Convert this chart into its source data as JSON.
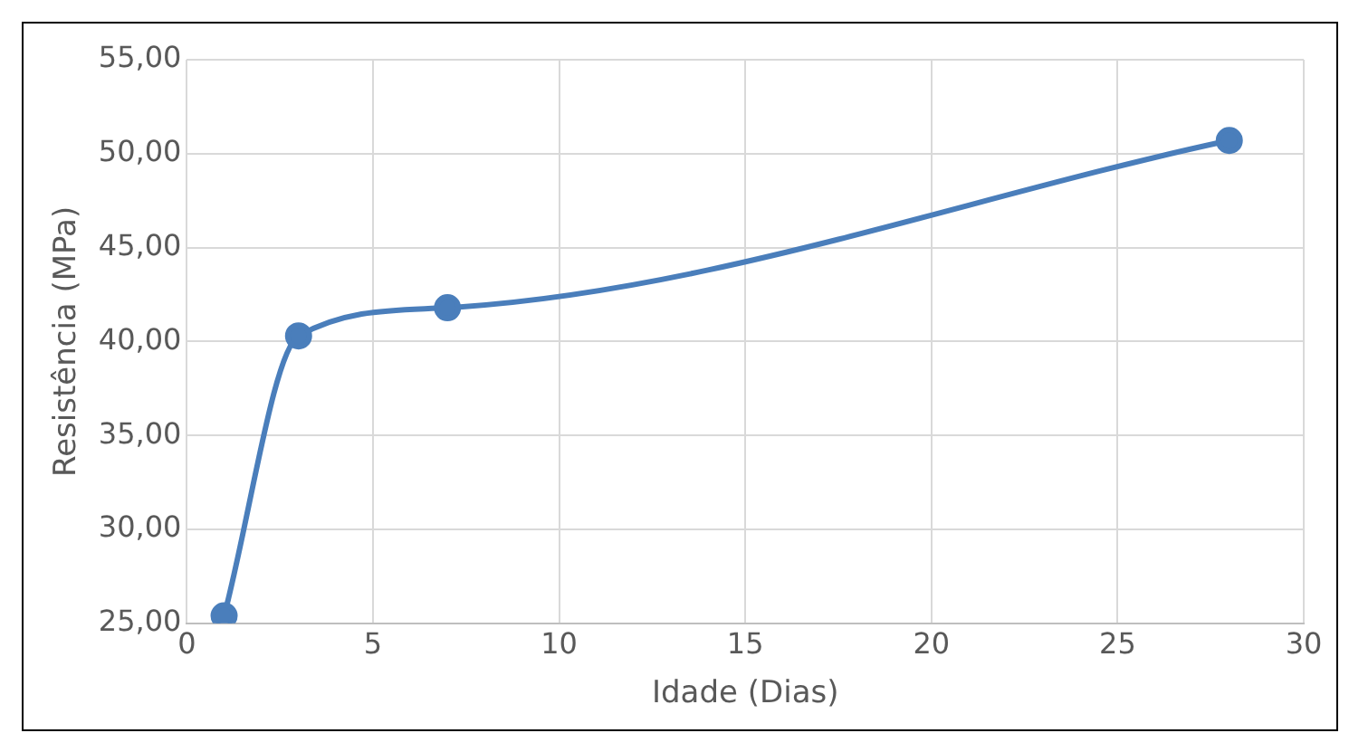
{
  "chart_data": {
    "type": "line",
    "xlabel": "Idade (Dias)",
    "ylabel": "Resistência (MPa)",
    "x": [
      1,
      3,
      7,
      28
    ],
    "series": [
      {
        "color": "#4a7ebb",
        "values": [
          25.4,
          40.3,
          41.8,
          50.7
        ]
      }
    ],
    "xlim": [
      0,
      30
    ],
    "xticks": [
      0,
      5,
      10,
      15,
      20,
      25,
      30
    ],
    "ylim": [
      25,
      55
    ],
    "yticks": [
      {
        "value": 25,
        "label": "25,00"
      },
      {
        "value": 30,
        "label": "30,00"
      },
      {
        "value": 35,
        "label": "35,00"
      },
      {
        "value": 40,
        "label": "40,00"
      },
      {
        "value": 45,
        "label": "45,00"
      },
      {
        "value": 50,
        "label": "50,00"
      },
      {
        "value": 55,
        "label": "55,00"
      }
    ],
    "grid": true,
    "marker": "circle",
    "line_style": "solid",
    "legend": false
  }
}
